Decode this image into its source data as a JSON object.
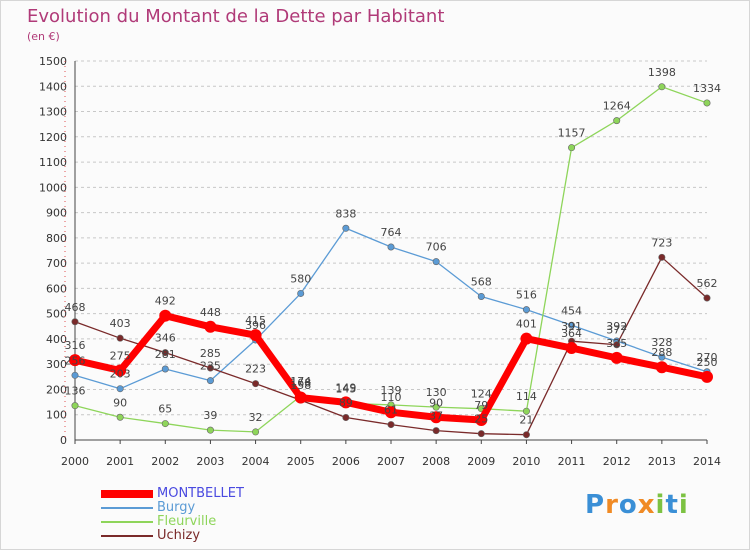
{
  "title": "Evolution du Montant de la Dette par Habitant",
  "subtitle": "(en €)",
  "logo": {
    "text": "Proxiti",
    "letters": [
      "P",
      "r",
      "o",
      "x",
      "i",
      "t",
      "i"
    ],
    "colors": [
      "#3a8fd6",
      "#f08a24",
      "#3a8fd6",
      "#f08a24",
      "#7cc242",
      "#3a8fd6",
      "#7cc242"
    ]
  },
  "chart_data": {
    "type": "line",
    "title": "Evolution du Montant de la Dette par Habitant",
    "subtitle": "(en €)",
    "xlabel": "",
    "ylabel": "",
    "x": [
      "2000",
      "2001",
      "2002",
      "2003",
      "2004",
      "2005",
      "2006",
      "2007",
      "2008",
      "2009",
      "2010",
      "2011",
      "2012",
      "2013",
      "2014"
    ],
    "ylim": [
      0,
      1500
    ],
    "yticks": [
      0,
      100,
      200,
      300,
      400,
      500,
      600,
      700,
      800,
      900,
      1000,
      1100,
      1200,
      1300,
      1400,
      1500
    ],
    "grid": "horizontal dashed",
    "legend": "bottom-left",
    "series": [
      {
        "name": "MONTBELLET",
        "color": "#ff0000",
        "legend_color": "#4a4ae0",
        "values": [
          316,
          275,
          492,
          448,
          415,
          168,
          149,
          110,
          90,
          79,
          401,
          364,
          325,
          288,
          250
        ]
      },
      {
        "name": "Burgy",
        "color": "#5b9bd5",
        "values": [
          256,
          203,
          281,
          235,
          396,
          580,
          838,
          764,
          706,
          568,
          516,
          454,
          392,
          328,
          270
        ]
      },
      {
        "name": "Fleurville",
        "color": "#8ed55a",
        "values": [
          136,
          90,
          65,
          39,
          32,
          174,
          145,
          139,
          130,
          124,
          114,
          1157,
          1264,
          1398,
          1334
        ]
      },
      {
        "name": "Uchizy",
        "color": "#7a2a2a",
        "values": [
          468,
          403,
          346,
          285,
          223,
          158,
          89,
          61,
          37,
          25,
          21,
          391,
          377,
          723,
          562
        ]
      }
    ]
  }
}
